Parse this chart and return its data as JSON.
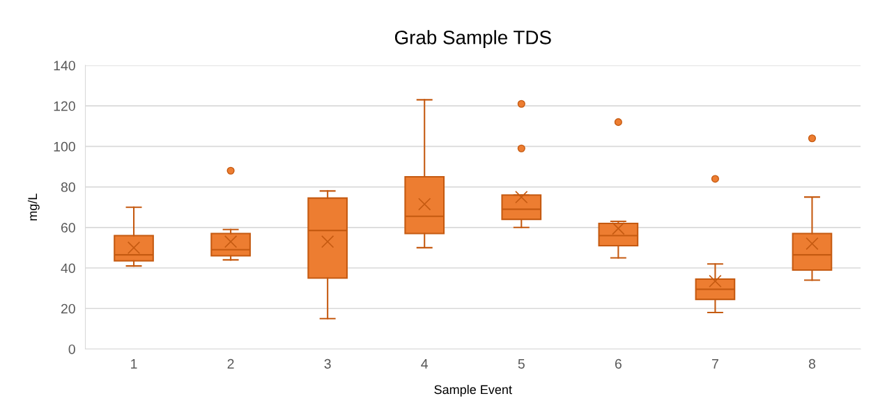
{
  "chart_data": {
    "type": "box",
    "title": "Grab Sample TDS",
    "xlabel": "Sample Event",
    "ylabel": "mg/L",
    "categories": [
      "1",
      "2",
      "3",
      "4",
      "5",
      "6",
      "7",
      "8"
    ],
    "series": [
      {
        "color": "#ed7d31",
        "boxes": [
          {
            "low": 41,
            "q1": 43.5,
            "median": 46.5,
            "q3": 56,
            "high": 70,
            "mean": 50
          },
          {
            "low": 44,
            "q1": 46,
            "median": 49,
            "q3": 57,
            "high": 59,
            "mean": 53,
            "outliers": [
              88
            ]
          },
          {
            "low": 15,
            "q1": 35,
            "median": 58.5,
            "q3": 74.5,
            "high": 78,
            "mean": 53
          },
          {
            "low": 50,
            "q1": 57,
            "median": 65.5,
            "q3": 85,
            "high": 123,
            "mean": 71.5
          },
          {
            "low": 60,
            "q1": 64,
            "median": 69,
            "q3": 76,
            "high": 76,
            "mean": 75,
            "outliers": [
              99,
              121
            ]
          },
          {
            "low": 45,
            "q1": 51,
            "median": 56,
            "q3": 62,
            "high": 63,
            "mean": 59.5,
            "outliers": [
              112
            ]
          },
          {
            "low": 18,
            "q1": 24.5,
            "median": 29.5,
            "q3": 34.5,
            "high": 42,
            "mean": 33.5,
            "outliers": [
              84
            ]
          },
          {
            "low": 34,
            "q1": 39,
            "median": 46.5,
            "q3": 57,
            "high": 75,
            "mean": 52,
            "outliers": [
              104
            ]
          }
        ]
      }
    ],
    "ylim": [
      0,
      140
    ],
    "yticks": [
      0,
      20,
      40,
      60,
      80,
      100,
      120,
      140
    ],
    "grid": "y",
    "legend": false
  }
}
